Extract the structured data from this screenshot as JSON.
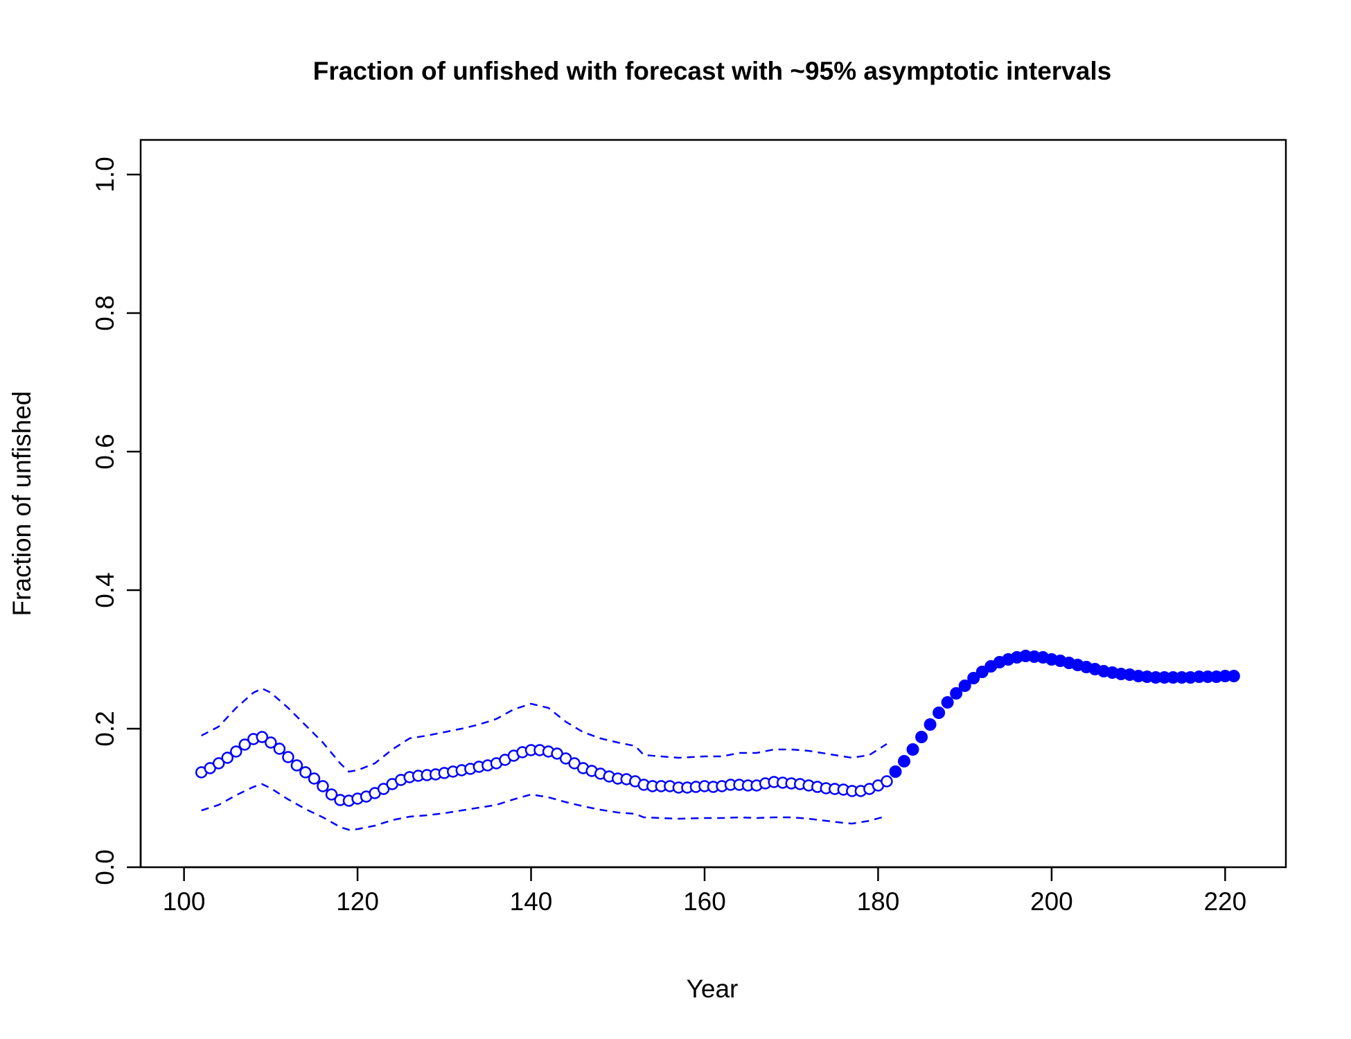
{
  "chart_data": {
    "type": "line",
    "title": "Fraction of unfished with forecast with ~95% asymptotic intervals",
    "xlabel": "Year",
    "ylabel": "Fraction of unfished",
    "xlim": [
      95,
      227
    ],
    "ylim": [
      0,
      1.05
    ],
    "x_ticks": [
      100,
      120,
      140,
      160,
      180,
      200,
      220
    ],
    "x_tick_labels": [
      "100",
      "120",
      "140",
      "160",
      "180",
      "200",
      "220"
    ],
    "y_ticks": [
      0,
      0.2,
      0.4,
      0.6,
      0.8,
      1.0
    ],
    "y_tick_labels": [
      "0.0",
      "0.2",
      "0.4",
      "0.6",
      "0.8",
      "1.0"
    ],
    "grid": false,
    "color": "#0000ff",
    "series": [
      {
        "role": "estimate",
        "marker": "open-circle",
        "x": [
          102,
          103,
          104,
          105,
          106,
          107,
          108,
          109,
          110,
          111,
          112,
          113,
          114,
          115,
          116,
          117,
          118,
          119,
          120,
          121,
          122,
          123,
          124,
          125,
          126,
          127,
          128,
          129,
          130,
          131,
          132,
          133,
          134,
          135,
          136,
          137,
          138,
          139,
          140,
          141,
          142,
          143,
          144,
          145,
          146,
          147,
          148,
          149,
          150,
          151,
          152,
          153,
          154,
          155,
          156,
          157,
          158,
          159,
          160,
          161,
          162,
          163,
          164,
          165,
          166,
          167,
          168,
          169,
          170,
          171,
          172,
          173,
          174,
          175,
          176,
          177,
          178,
          179,
          180,
          181
        ],
        "y": [
          0.137,
          0.143,
          0.15,
          0.158,
          0.167,
          0.177,
          0.185,
          0.188,
          0.18,
          0.171,
          0.159,
          0.147,
          0.137,
          0.128,
          0.117,
          0.105,
          0.097,
          0.096,
          0.099,
          0.102,
          0.107,
          0.113,
          0.12,
          0.126,
          0.13,
          0.132,
          0.133,
          0.134,
          0.136,
          0.138,
          0.14,
          0.142,
          0.145,
          0.147,
          0.15,
          0.155,
          0.161,
          0.166,
          0.169,
          0.169,
          0.167,
          0.164,
          0.157,
          0.15,
          0.143,
          0.139,
          0.135,
          0.131,
          0.128,
          0.127,
          0.124,
          0.119,
          0.117,
          0.117,
          0.117,
          0.115,
          0.115,
          0.116,
          0.117,
          0.116,
          0.117,
          0.119,
          0.119,
          0.118,
          0.118,
          0.121,
          0.123,
          0.122,
          0.121,
          0.12,
          0.118,
          0.116,
          0.114,
          0.113,
          0.112,
          0.11,
          0.11,
          0.113,
          0.118,
          0.124
        ]
      },
      {
        "role": "upper-95",
        "style": "dashed",
        "x": [
          102,
          104,
          106,
          108,
          109,
          110,
          112,
          114,
          116,
          118,
          119,
          120,
          122,
          124,
          126,
          128,
          130,
          132,
          134,
          136,
          138,
          140,
          142,
          144,
          146,
          148,
          150,
          152,
          153,
          155,
          157,
          160,
          162,
          164,
          166,
          168,
          170,
          172,
          174,
          176,
          177,
          179,
          181
        ],
        "y": [
          0.19,
          0.203,
          0.23,
          0.252,
          0.258,
          0.252,
          0.23,
          0.205,
          0.18,
          0.15,
          0.138,
          0.14,
          0.15,
          0.17,
          0.186,
          0.19,
          0.195,
          0.2,
          0.206,
          0.214,
          0.228,
          0.236,
          0.23,
          0.21,
          0.195,
          0.186,
          0.18,
          0.175,
          0.162,
          0.16,
          0.158,
          0.16,
          0.16,
          0.165,
          0.165,
          0.17,
          0.17,
          0.168,
          0.164,
          0.16,
          0.158,
          0.162,
          0.178
        ]
      },
      {
        "role": "lower-95",
        "style": "dashed",
        "x": [
          102,
          104,
          106,
          108,
          109,
          110,
          112,
          114,
          116,
          118,
          119,
          120,
          122,
          124,
          126,
          128,
          130,
          132,
          134,
          136,
          138,
          140,
          142,
          144,
          146,
          148,
          150,
          152,
          153,
          155,
          157,
          160,
          162,
          164,
          166,
          168,
          170,
          172,
          174,
          176,
          177,
          179,
          181
        ],
        "y": [
          0.082,
          0.09,
          0.104,
          0.116,
          0.12,
          0.114,
          0.098,
          0.084,
          0.072,
          0.058,
          0.054,
          0.055,
          0.06,
          0.068,
          0.073,
          0.075,
          0.078,
          0.082,
          0.086,
          0.09,
          0.098,
          0.105,
          0.101,
          0.094,
          0.088,
          0.083,
          0.079,
          0.077,
          0.072,
          0.071,
          0.07,
          0.071,
          0.071,
          0.072,
          0.071,
          0.072,
          0.072,
          0.07,
          0.067,
          0.064,
          0.063,
          0.067,
          0.074
        ]
      },
      {
        "role": "forecast",
        "marker": "filled-circle",
        "x": [
          182,
          183,
          184,
          185,
          186,
          187,
          188,
          189,
          190,
          191,
          192,
          193,
          194,
          195,
          196,
          197,
          198,
          199,
          200,
          201,
          202,
          203,
          204,
          205,
          206,
          207,
          208,
          209,
          210,
          211,
          212,
          213,
          214,
          215,
          216,
          217,
          218,
          219,
          220,
          221
        ],
        "y": [
          0.138,
          0.153,
          0.17,
          0.188,
          0.206,
          0.223,
          0.238,
          0.251,
          0.262,
          0.273,
          0.282,
          0.29,
          0.296,
          0.3,
          0.303,
          0.305,
          0.304,
          0.303,
          0.3,
          0.298,
          0.295,
          0.292,
          0.289,
          0.286,
          0.283,
          0.281,
          0.279,
          0.278,
          0.276,
          0.275,
          0.274,
          0.274,
          0.274,
          0.274,
          0.274,
          0.275,
          0.275,
          0.275,
          0.276,
          0.276
        ]
      }
    ]
  }
}
